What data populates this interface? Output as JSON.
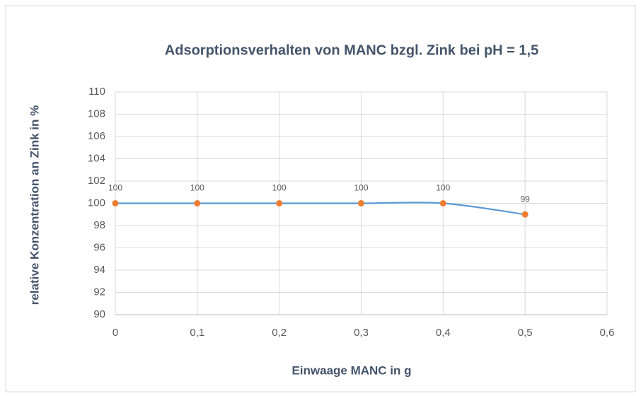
{
  "chart_data": {
    "type": "line",
    "title": "Adsorptionsverhalten von MANC bzgl. Zink bei pH = 1,5",
    "x_label": "Einwaage MANC in g",
    "y_label": "relative Konzentration an Zink in %",
    "x": [
      0,
      0.1,
      0.2,
      0.3,
      0.4,
      0.5
    ],
    "series": [
      {
        "name": "relative Konzentration",
        "color": "#5b9bd5",
        "marker_color": "#ed7d31",
        "values": [
          100,
          100,
          100,
          100,
          100,
          99
        ]
      }
    ],
    "xlim": [
      0,
      0.6
    ],
    "xticks": [
      0,
      {
        "value": 0.1,
        "label": "0,1"
      },
      {
        "value": 0.2,
        "label": "0,2"
      },
      {
        "value": 0.3,
        "label": "0,3"
      },
      {
        "value": 0.4,
        "label": "0,4"
      },
      {
        "value": 0.5,
        "label": "0,5"
      },
      {
        "value": 0.6,
        "label": "0,6"
      }
    ],
    "ylim": [
      90,
      110
    ],
    "yticks": [
      90,
      92,
      94,
      96,
      98,
      100,
      102,
      104,
      106,
      108,
      110
    ],
    "grid": true
  }
}
